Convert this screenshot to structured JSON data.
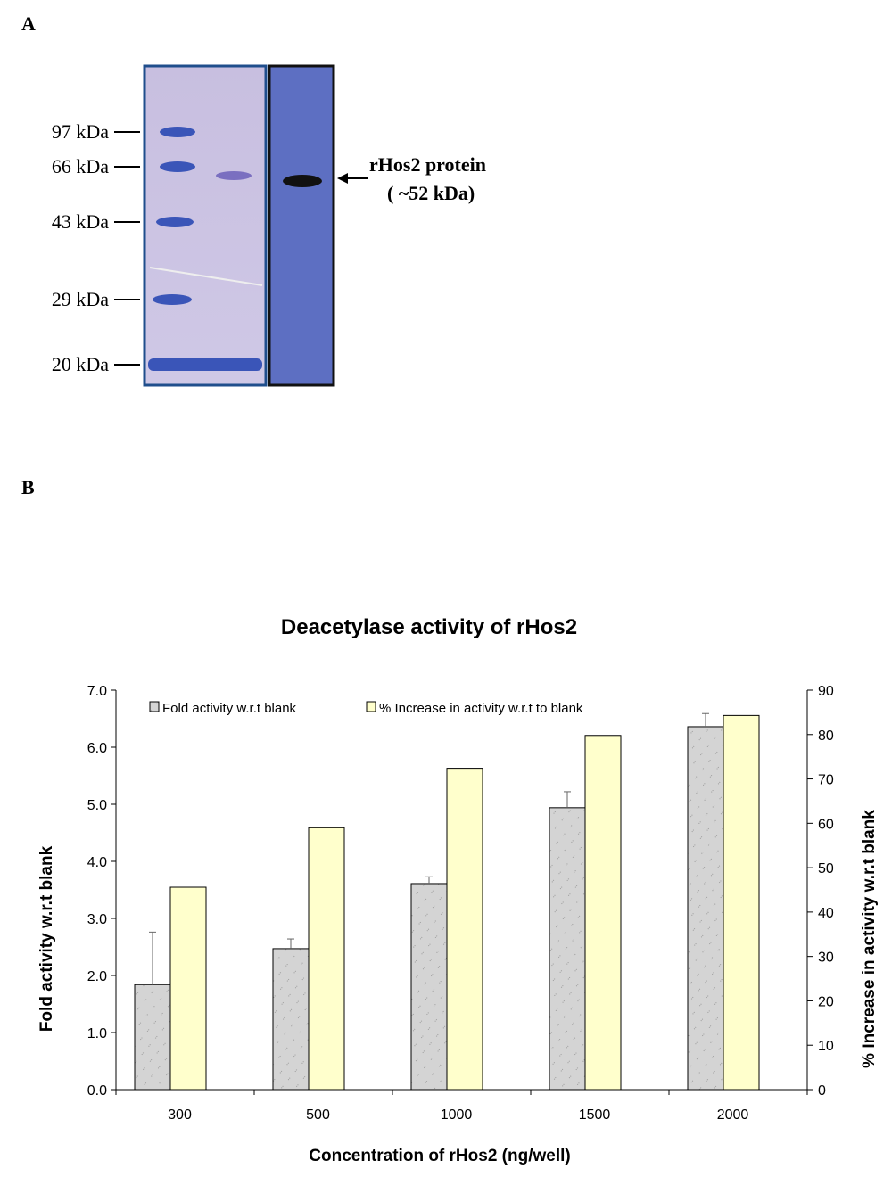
{
  "panel_a": {
    "label": "A",
    "markers": [
      "97 kDa",
      "66 kDa",
      "43 kDa",
      "29 kDa",
      "20 kDa"
    ],
    "annotation": [
      "rHos2 protein",
      "( ~52 kDa)"
    ]
  },
  "panel_b": {
    "label": "B"
  },
  "chart_data": {
    "type": "bar",
    "title": "Deacetylase activity of rHos2",
    "x_label": "Concentration of rHos2 (ng/well)",
    "y_label": "Fold activity w.r.t blank",
    "y2_label": "% Increase in activity w.r.t blank",
    "categories": [
      "300",
      "500",
      "1000",
      "1500",
      "2000"
    ],
    "series": [
      {
        "name": "Fold activity w.r.t blank",
        "color": "#d4d4d4",
        "values": [
          1.84,
          2.47,
          3.61,
          4.94,
          6.36
        ],
        "errors": [
          0.92,
          0.17,
          0.12,
          0.28,
          0.23
        ]
      },
      {
        "name": "% Increase in activity w.r.t to blank",
        "color": "#ffffcc",
        "axis": "y2",
        "values": [
          45.6,
          59.0,
          72.4,
          79.8,
          84.3
        ]
      }
    ],
    "ylim": [
      0,
      7
    ],
    "yticks": [
      {
        "value": 0,
        "label": "0.0"
      },
      {
        "value": 1,
        "label": "1.0"
      },
      {
        "value": 2,
        "label": "2.0"
      },
      {
        "value": 3,
        "label": "3.0"
      },
      {
        "value": 4,
        "label": "4.0"
      },
      {
        "value": 5,
        "label": "5.0"
      },
      {
        "value": 6,
        "label": "6.0"
      },
      {
        "value": 7,
        "label": "7.0"
      }
    ],
    "y2lim": [
      0,
      90
    ],
    "y2ticks": [
      0,
      10,
      20,
      30,
      40,
      50,
      60,
      70,
      80,
      90
    ],
    "legend": "top-left",
    "grid": false
  }
}
